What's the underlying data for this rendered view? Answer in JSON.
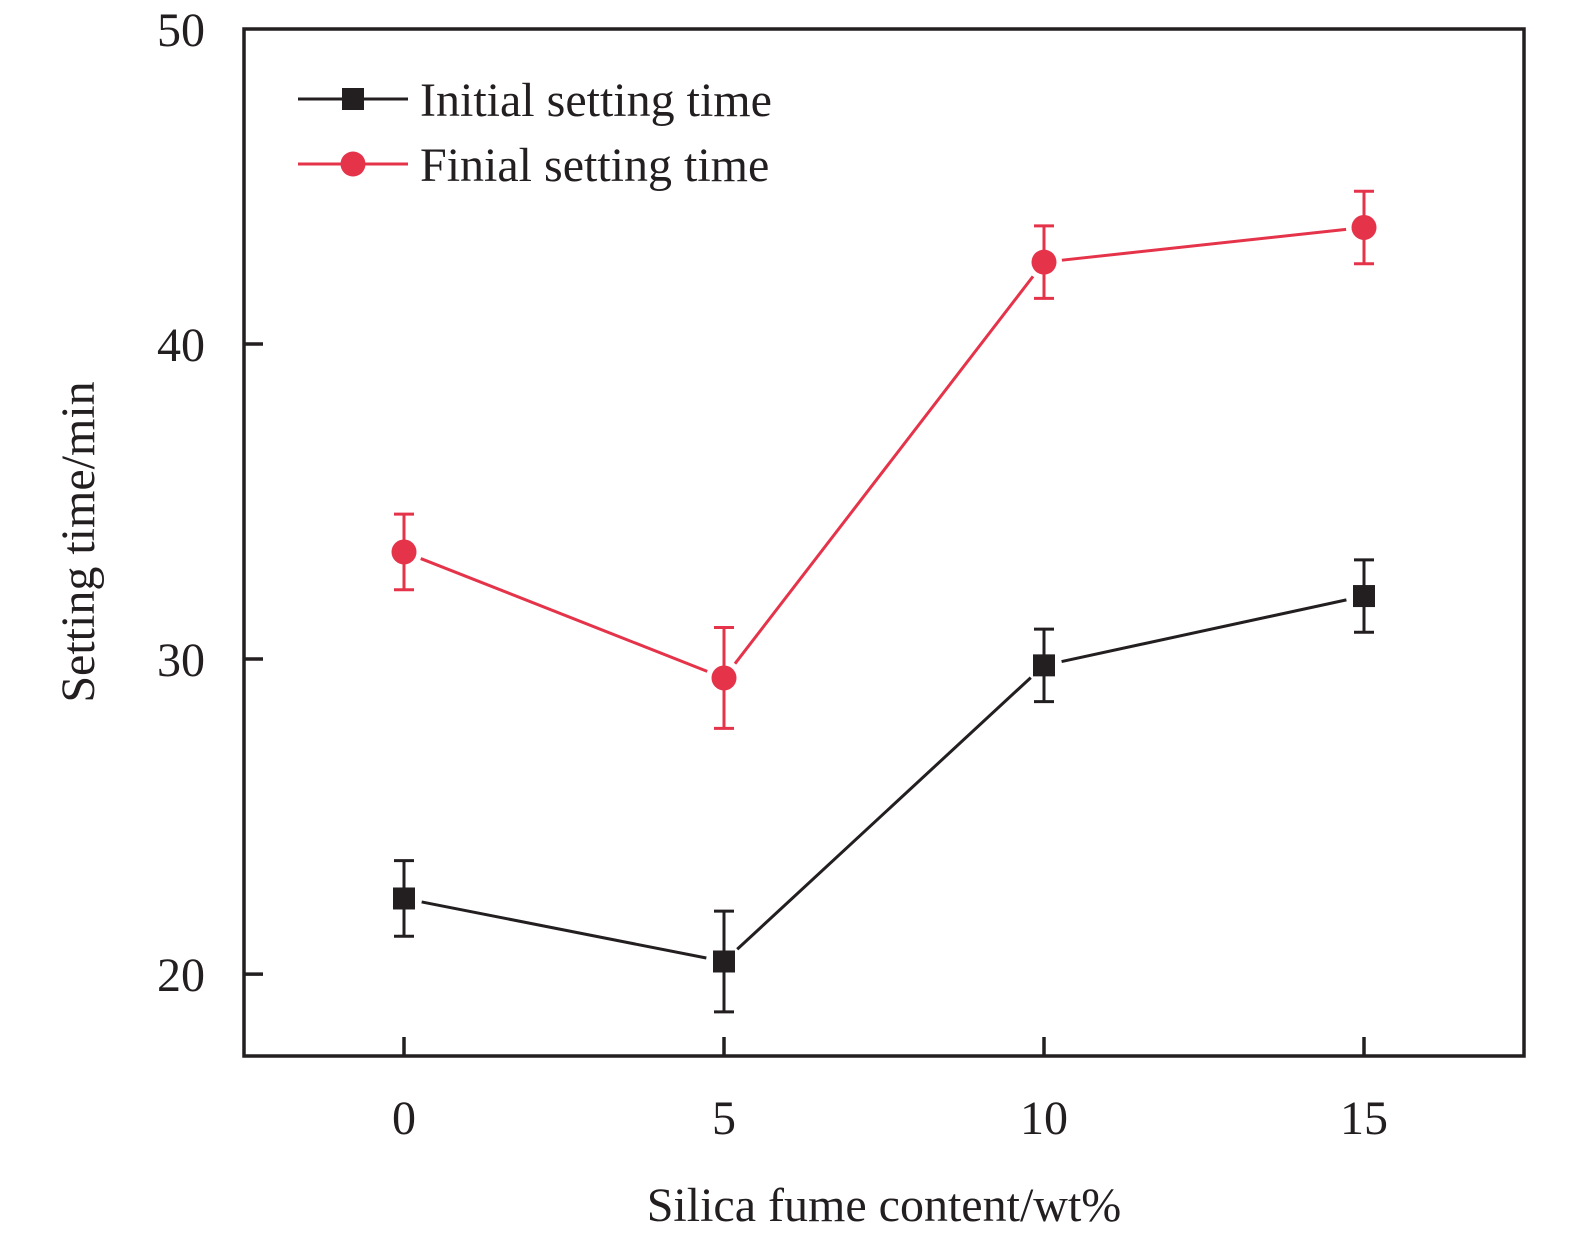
{
  "chart_data": {
    "type": "line",
    "title": "",
    "xlabel": "Silica fume content/wt%",
    "ylabel": "Setting time/min",
    "xlim": [
      -2.5,
      17.5
    ],
    "ylim": [
      17.4,
      50
    ],
    "xticks": [
      0,
      5,
      10,
      15
    ],
    "xtick_labels": [
      "0",
      "5",
      "10",
      "15"
    ],
    "yticks": [
      20,
      30,
      40,
      50
    ],
    "ytick_labels": [
      "20",
      "30",
      "40",
      "50"
    ],
    "grid": false,
    "legend_position": "top-left",
    "x": [
      0,
      5,
      10,
      15
    ],
    "series": [
      {
        "name": "Initial setting time",
        "marker": "square",
        "color": "#231f20",
        "values": [
          22.4,
          20.4,
          29.8,
          32.0
        ],
        "errors": [
          1.2,
          1.6,
          1.15,
          1.15
        ]
      },
      {
        "name": "Finial setting time",
        "marker": "circle",
        "color": "#e5334a",
        "values": [
          33.4,
          29.4,
          42.6,
          43.7
        ],
        "errors": [
          1.2,
          1.6,
          1.15,
          1.15
        ]
      }
    ]
  }
}
